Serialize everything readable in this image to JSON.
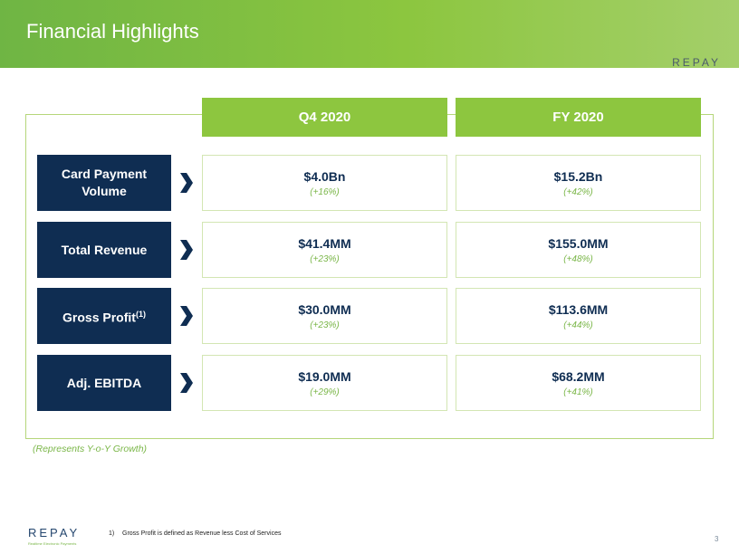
{
  "header": {
    "title": "Financial Highlights",
    "logo": "REPAY"
  },
  "table": {
    "columns": [
      "Q4 2020",
      "FY 2020"
    ],
    "rows": [
      {
        "label": "Card Payment Volume",
        "cells": [
          {
            "value": "$4.0Bn",
            "growth": "(+16%)"
          },
          {
            "value": "$15.2Bn",
            "growth": "(+42%)"
          }
        ]
      },
      {
        "label": "Total Revenue",
        "cells": [
          {
            "value": "$41.4MM",
            "growth": "(+23%)"
          },
          {
            "value": "$155.0MM",
            "growth": "(+48%)"
          }
        ]
      },
      {
        "label": "Gross Profit",
        "footnote_mark": "(1)",
        "cells": [
          {
            "value": "$30.0MM",
            "growth": "(+23%)"
          },
          {
            "value": "$113.6MM",
            "growth": "(+44%)"
          }
        ]
      },
      {
        "label": "Adj. EBITDA",
        "cells": [
          {
            "value": "$19.0MM",
            "growth": "(+29%)"
          },
          {
            "value": "$68.2MM",
            "growth": "(+41%)"
          }
        ]
      }
    ]
  },
  "note": "(Represents Y-o-Y Growth)",
  "footer": {
    "logo": "REPAY",
    "tagline": "Realtime Electronic Payments",
    "footnote_number": "1)",
    "footnote": "Gross Profit is defined as Revenue less Cost of Services",
    "page": "3"
  }
}
